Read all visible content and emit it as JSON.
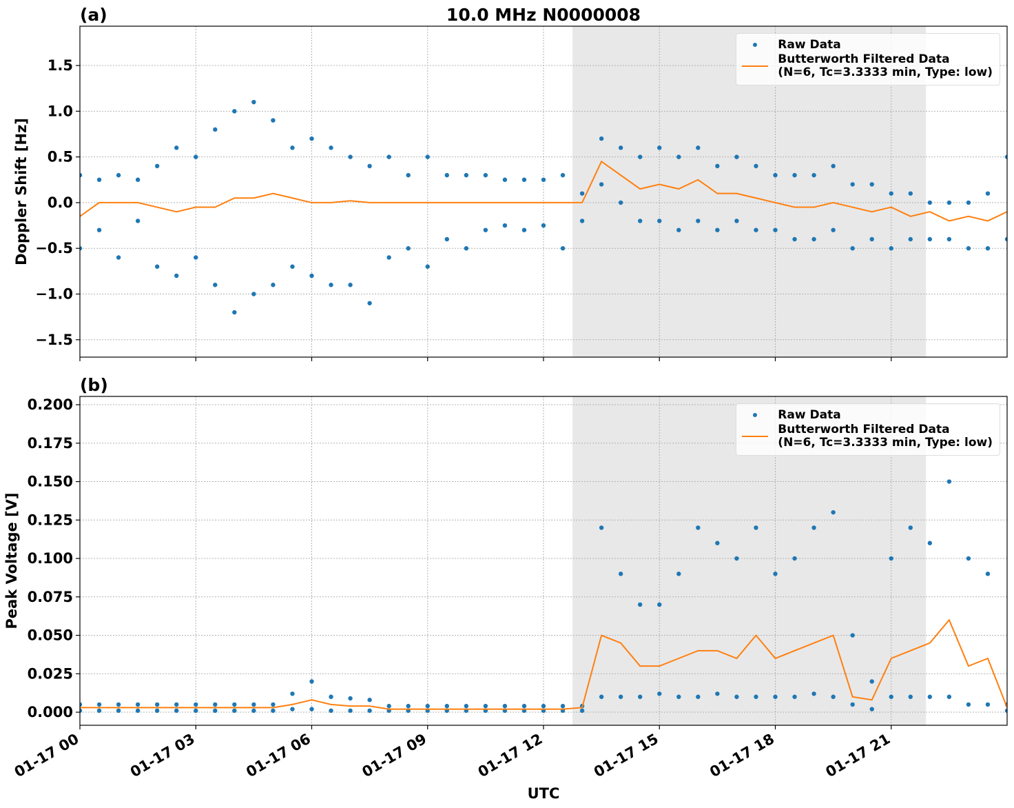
{
  "chart_data": [
    {
      "type": "scatter",
      "title": "10.0 MHz N0000008",
      "label": "(a)",
      "ylabel": "Doppler Shift [Hz]",
      "xlim": [
        0,
        24
      ],
      "ylim": [
        -1.69,
        1.93
      ],
      "xticks": [
        {
          "value": 0,
          "label": "01-17 00"
        },
        {
          "value": 3,
          "label": "01-17 03"
        },
        {
          "value": 6,
          "label": "01-17 06"
        },
        {
          "value": 9,
          "label": "01-17 09"
        },
        {
          "value": 12,
          "label": "01-17 12"
        },
        {
          "value": 15,
          "label": "01-17 15"
        },
        {
          "value": 18,
          "label": "01-17 18"
        },
        {
          "value": 21,
          "label": "01-17 21"
        }
      ],
      "show_xtick_labels": false,
      "yticks": [
        {
          "value": -1.5,
          "label": "−1.5"
        },
        {
          "value": -1,
          "label": "−1.0"
        },
        {
          "value": -0.5,
          "label": "−0.5"
        },
        {
          "value": 0,
          "label": "0.0"
        },
        0.5,
        {
          "value": 1,
          "label": "1.0"
        },
        1.5
      ],
      "grid": true,
      "shade": [
        12.75,
        21.9
      ],
      "legend": "upper right",
      "series": [
        {
          "name": "Raw Data",
          "mode": "markers",
          "color": "#1f77b4",
          "x": [
            0,
            0,
            0.5,
            0.5,
            1,
            1,
            1.5,
            1.5,
            2,
            2,
            2.5,
            2.5,
            3,
            3,
            3.5,
            3.5,
            4,
            4,
            4.5,
            4.5,
            5,
            5,
            5.5,
            5.5,
            6,
            6,
            6.5,
            6.5,
            7,
            7,
            7.5,
            7.5,
            8,
            8,
            8.5,
            8.5,
            9,
            9,
            9.5,
            9.5,
            10,
            10,
            10.5,
            10.5,
            11,
            11,
            11.5,
            11.5,
            12,
            12,
            12.5,
            12.5,
            13,
            13,
            13.5,
            13.5,
            14,
            14,
            14.5,
            14.5,
            15,
            15,
            15.5,
            15.5,
            16,
            16,
            16.5,
            16.5,
            17,
            17,
            17.5,
            17.5,
            18,
            18,
            18.5,
            18.5,
            19,
            19,
            19.5,
            19.5,
            20,
            20,
            20.5,
            20.5,
            21,
            21,
            21.5,
            21.5,
            22,
            22,
            22.5,
            22.5,
            23,
            23,
            23.5,
            23.5,
            24,
            24
          ],
          "values": [
            0.3,
            -0.5,
            0.25,
            -0.3,
            0.3,
            -0.6,
            0.25,
            -0.2,
            0.4,
            -0.7,
            0.6,
            -0.8,
            0.5,
            -0.6,
            0.8,
            -0.9,
            1.0,
            -1.2,
            1.1,
            -1.0,
            0.9,
            -0.9,
            0.6,
            -0.7,
            0.7,
            -0.8,
            0.6,
            -0.9,
            0.5,
            -0.9,
            0.4,
            -1.1,
            0.5,
            -0.6,
            0.3,
            -0.5,
            0.5,
            -0.7,
            0.3,
            -0.4,
            0.3,
            -0.5,
            0.3,
            -0.3,
            0.25,
            -0.25,
            0.25,
            -0.3,
            0.25,
            -0.25,
            0.3,
            -0.5,
            0.1,
            -0.2,
            0.7,
            0.2,
            0.6,
            0.0,
            0.5,
            -0.2,
            0.6,
            -0.2,
            0.5,
            -0.3,
            0.6,
            -0.2,
            0.4,
            -0.3,
            0.5,
            -0.2,
            0.4,
            -0.3,
            0.3,
            -0.3,
            0.3,
            -0.4,
            0.3,
            -0.4,
            0.4,
            -0.3,
            0.2,
            -0.5,
            0.2,
            -0.4,
            0.1,
            -0.5,
            0.1,
            -0.4,
            0.0,
            -0.4,
            0.0,
            -0.4,
            0.0,
            -0.5,
            0.1,
            -0.5,
            0.5,
            -0.4
          ]
        },
        {
          "name": "Butterworth Filtered Data\n(N=6, Tc=3.3333 min, Type: low)",
          "mode": "line",
          "color": "#ff7f0e",
          "x": [
            0,
            0.5,
            1,
            1.5,
            2,
            2.5,
            3,
            3.5,
            4,
            4.5,
            5,
            5.5,
            6,
            6.5,
            7,
            7.5,
            8,
            8.5,
            9,
            9.5,
            10,
            10.5,
            11,
            11.5,
            12,
            12.5,
            13,
            13.5,
            14,
            14.5,
            15,
            15.5,
            16,
            16.5,
            17,
            17.5,
            18,
            18.5,
            19,
            19.5,
            20,
            20.5,
            21,
            21.5,
            22,
            22.5,
            23,
            23.5,
            24
          ],
          "values": [
            -0.15,
            0,
            0,
            0,
            -0.05,
            -0.1,
            -0.05,
            -0.05,
            0.05,
            0.05,
            0.1,
            0.05,
            0,
            0,
            0.02,
            0,
            0,
            0,
            0,
            0,
            0,
            0,
            0,
            0,
            0,
            0,
            0,
            0.45,
            0.3,
            0.15,
            0.2,
            0.15,
            0.25,
            0.1,
            0.1,
            0.05,
            0,
            -0.05,
            -0.05,
            0,
            -0.05,
            -0.1,
            -0.05,
            -0.15,
            -0.1,
            -0.2,
            -0.15,
            -0.2,
            -0.1
          ]
        }
      ]
    },
    {
      "type": "scatter",
      "label": "(b)",
      "ylabel": "Peak Voltage [V]",
      "xlabel": "UTC",
      "xlim": [
        0,
        24
      ],
      "ylim": [
        -0.0085,
        0.2054
      ],
      "xticks": [
        {
          "value": 0,
          "label": "01-17 00"
        },
        {
          "value": 3,
          "label": "01-17 03"
        },
        {
          "value": 6,
          "label": "01-17 06"
        },
        {
          "value": 9,
          "label": "01-17 09"
        },
        {
          "value": 12,
          "label": "01-17 12"
        },
        {
          "value": 15,
          "label": "01-17 15"
        },
        {
          "value": 18,
          "label": "01-17 18"
        },
        {
          "value": 21,
          "label": "01-17 21"
        }
      ],
      "show_xtick_labels": true,
      "yticks": [
        {
          "value": 0,
          "label": "0.000"
        },
        0.025,
        {
          "value": 0.05,
          "label": "0.050"
        },
        0.075,
        {
          "value": 0.1,
          "label": "0.100"
        },
        0.125,
        {
          "value": 0.15,
          "label": "0.150"
        },
        0.175,
        {
          "value": 0.2,
          "label": "0.200"
        }
      ],
      "grid": true,
      "shade": [
        12.75,
        21.9
      ],
      "legend": "upper right",
      "series": [
        {
          "name": "Raw Data",
          "mode": "markers",
          "color": "#1f77b4",
          "x": [
            0,
            0,
            0.5,
            0.5,
            1,
            1,
            1.5,
            1.5,
            2,
            2,
            2.5,
            2.5,
            3,
            3,
            3.5,
            3.5,
            4,
            4,
            4.5,
            4.5,
            5,
            5,
            5.5,
            5.5,
            6,
            6,
            6.5,
            6.5,
            7,
            7,
            7.5,
            7.5,
            8,
            8,
            8.5,
            8.5,
            9,
            9,
            9.5,
            9.5,
            10,
            10,
            10.5,
            10.5,
            11,
            11,
            11.5,
            11.5,
            12,
            12,
            12.5,
            12.5,
            13,
            13,
            13.5,
            13.5,
            14,
            14,
            14.5,
            14.5,
            15,
            15,
            15.5,
            15.5,
            16,
            16,
            16.5,
            16.5,
            17,
            17,
            17.5,
            17.5,
            18,
            18,
            18.5,
            18.5,
            19,
            19,
            19.5,
            19.5,
            20,
            20,
            20.5,
            20.5,
            21,
            21,
            21.5,
            21.5,
            22,
            22,
            22.5,
            22.5,
            23,
            23,
            23.5,
            23.5,
            24,
            24
          ],
          "values": [
            0.005,
            0.001,
            0.005,
            0.001,
            0.005,
            0.001,
            0.005,
            0.001,
            0.005,
            0.001,
            0.005,
            0.001,
            0.005,
            0.001,
            0.005,
            0.001,
            0.005,
            0.001,
            0.005,
            0.001,
            0.005,
            0.001,
            0.012,
            0.002,
            0.02,
            0.002,
            0.01,
            0.001,
            0.009,
            0.001,
            0.008,
            0.001,
            0.004,
            0.001,
            0.004,
            0.001,
            0.004,
            0.001,
            0.004,
            0.001,
            0.004,
            0.001,
            0.004,
            0.001,
            0.004,
            0.001,
            0.004,
            0.001,
            0.004,
            0.001,
            0.004,
            0.001,
            0.004,
            0.001,
            0.12,
            0.01,
            0.09,
            0.01,
            0.07,
            0.01,
            0.07,
            0.012,
            0.09,
            0.01,
            0.12,
            0.01,
            0.11,
            0.012,
            0.1,
            0.01,
            0.12,
            0.01,
            0.09,
            0.01,
            0.1,
            0.01,
            0.12,
            0.012,
            0.13,
            0.01,
            0.05,
            0.005,
            0.02,
            0.002,
            0.1,
            0.01,
            0.12,
            0.01,
            0.11,
            0.01,
            0.15,
            0.01,
            0.1,
            0.005,
            0.09,
            0.005,
            0.005,
            0.001
          ]
        },
        {
          "name": "Butterworth Filtered Data\n(N=6, Tc=3.3333 min, Type: low)",
          "mode": "line",
          "color": "#ff7f0e",
          "x": [
            0,
            0.5,
            1,
            1.5,
            2,
            2.5,
            3,
            3.5,
            4,
            4.5,
            5,
            5.5,
            6,
            6.5,
            7,
            7.5,
            8,
            8.5,
            9,
            9.5,
            10,
            10.5,
            11,
            11.5,
            12,
            12.5,
            13,
            13.5,
            14,
            14.5,
            15,
            15.5,
            16,
            16.5,
            17,
            17.5,
            18,
            18.5,
            19,
            19.5,
            20,
            20.5,
            21,
            21.5,
            22,
            22.5,
            23,
            23.5,
            24
          ],
          "values": [
            0.003,
            0.003,
            0.003,
            0.003,
            0.003,
            0.003,
            0.003,
            0.003,
            0.003,
            0.003,
            0.003,
            0.005,
            0.008,
            0.005,
            0.004,
            0.004,
            0.002,
            0.002,
            0.002,
            0.002,
            0.002,
            0.002,
            0.002,
            0.002,
            0.002,
            0.002,
            0.003,
            0.05,
            0.045,
            0.03,
            0.03,
            0.035,
            0.04,
            0.04,
            0.035,
            0.05,
            0.035,
            0.04,
            0.045,
            0.05,
            0.01,
            0.008,
            0.035,
            0.04,
            0.045,
            0.06,
            0.03,
            0.035,
            0.003
          ]
        }
      ]
    }
  ]
}
